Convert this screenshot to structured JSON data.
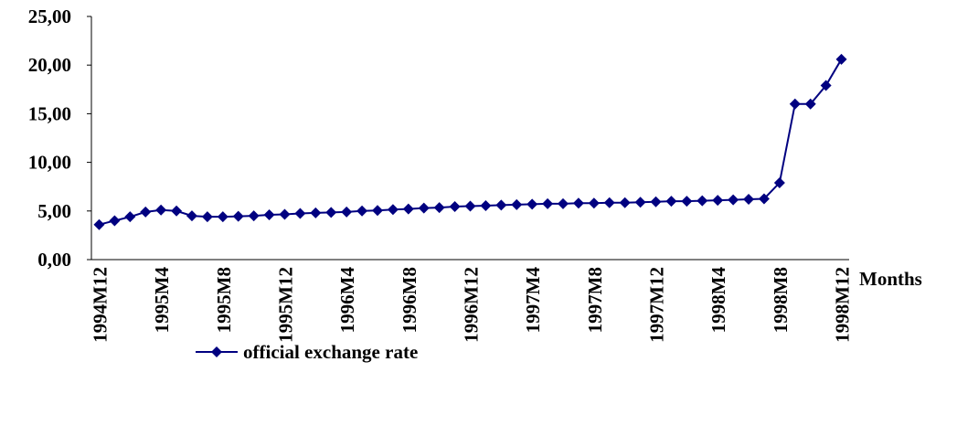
{
  "chart_data": {
    "type": "line",
    "x_label": "Months",
    "categories": [
      "1994M12",
      null,
      null,
      null,
      "1995M4",
      null,
      null,
      null,
      "1995M8",
      null,
      null,
      null,
      "1995M12",
      null,
      null,
      null,
      "1996M4",
      null,
      null,
      null,
      "1996M8",
      null,
      null,
      null,
      "1996M12",
      null,
      null,
      null,
      "1997M4",
      null,
      null,
      null,
      "1997M8",
      null,
      null,
      null,
      "1997M12",
      null,
      null,
      null,
      "1998M4",
      null,
      null,
      null,
      "1998M8",
      null,
      null,
      null,
      "1998M12"
    ],
    "series": [
      {
        "name": "official exchange rate",
        "color": "#000080",
        "values": [
          3.6,
          4.0,
          4.4,
          4.9,
          5.1,
          5.0,
          4.5,
          4.4,
          4.4,
          4.45,
          4.5,
          4.6,
          4.65,
          4.75,
          4.8,
          4.85,
          4.9,
          5.0,
          5.05,
          5.15,
          5.2,
          5.3,
          5.35,
          5.45,
          5.5,
          5.55,
          5.6,
          5.65,
          5.7,
          5.75,
          5.75,
          5.8,
          5.8,
          5.85,
          5.85,
          5.9,
          5.95,
          6.0,
          6.0,
          6.05,
          6.1,
          6.15,
          6.2,
          6.25,
          7.9,
          16.0,
          16.0,
          17.9,
          20.6
        ]
      }
    ],
    "ylim": [
      0,
      25
    ],
    "yticks": [
      {
        "value": 0,
        "label": "0,00"
      },
      {
        "value": 5,
        "label": "5,00"
      },
      {
        "value": 10,
        "label": "10,00"
      },
      {
        "value": 15,
        "label": "15,00"
      },
      {
        "value": 20,
        "label": "20,00"
      },
      {
        "value": 25,
        "label": "25,00"
      }
    ],
    "legend": "bottom"
  }
}
